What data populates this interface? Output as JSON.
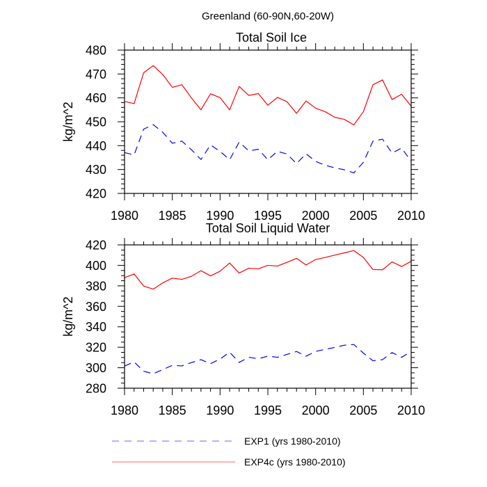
{
  "figure": {
    "title": "Greenland (60-90N,60-20W)"
  },
  "chart_data": [
    {
      "type": "line",
      "title": "Total Soil Ice",
      "xlabel": "",
      "ylabel": "kg/m^2",
      "xlim": [
        1980,
        2010
      ],
      "ylim": [
        420,
        480
      ],
      "x_ticks": [
        1980,
        1985,
        1990,
        1995,
        2000,
        2005,
        2010
      ],
      "x_tick_labels": [
        "1980",
        "1985",
        "1990",
        "1995",
        "2000",
        "2005",
        "2010"
      ],
      "x_minor_step": 1,
      "y_ticks": [
        420,
        430,
        440,
        450,
        460,
        470,
        480
      ],
      "y_tick_labels": [
        "420",
        "430",
        "440",
        "450",
        "460",
        "470",
        "480"
      ],
      "y_minor_step": 2,
      "grid": false,
      "x": [
        1980,
        1981,
        1982,
        1983,
        1984,
        1985,
        1986,
        1987,
        1988,
        1989,
        1990,
        1991,
        1992,
        1993,
        1994,
        1995,
        1996,
        1997,
        1998,
        1999,
        2000,
        2001,
        2002,
        2003,
        2004,
        2005,
        2006,
        2007,
        2008,
        2009,
        2010
      ],
      "series": [
        {
          "name": "EXP1 (yrs 1980-2010)",
          "color": "#0000ff",
          "style": "dashed",
          "values": [
            437.1,
            436.1,
            446.9,
            448.8,
            445.6,
            441.0,
            441.9,
            438.3,
            434.2,
            440.3,
            437.6,
            434.1,
            441.5,
            437.8,
            438.5,
            434.1,
            437.6,
            436.5,
            432.5,
            436.6,
            433.4,
            431.8,
            430.7,
            429.9,
            428.6,
            433.0,
            441.9,
            442.7,
            436.9,
            439.0,
            433.4
          ]
        },
        {
          "name": "EXP4c (yrs 1980-2010)",
          "color": "#ff0000",
          "style": "solid",
          "values": [
            458.5,
            457.6,
            470.5,
            473.5,
            469.8,
            464.4,
            465.5,
            460.0,
            455.0,
            461.7,
            460.1,
            455.0,
            464.8,
            461.0,
            461.8,
            456.9,
            460.2,
            458.4,
            453.5,
            458.7,
            455.7,
            454.2,
            451.9,
            451.0,
            448.7,
            454.2,
            465.5,
            467.5,
            459.3,
            461.5,
            456.5
          ]
        }
      ]
    },
    {
      "type": "line",
      "title": "Total Soil Liquid Water",
      "xlabel": "",
      "ylabel": "kg/m^2",
      "xlim": [
        1980,
        2010
      ],
      "ylim": [
        280,
        420
      ],
      "x_ticks": [
        1980,
        1985,
        1990,
        1995,
        2000,
        2005,
        2010
      ],
      "x_tick_labels": [
        "1980",
        "1985",
        "1990",
        "1995",
        "2000",
        "2005",
        "2010"
      ],
      "x_minor_step": 1,
      "y_ticks": [
        280,
        300,
        320,
        340,
        360,
        380,
        400,
        420
      ],
      "y_tick_labels": [
        "280",
        "300",
        "320",
        "340",
        "360",
        "380",
        "400",
        "420"
      ],
      "y_minor_step": 5,
      "grid": false,
      "x": [
        1980,
        1981,
        1982,
        1983,
        1984,
        1985,
        1986,
        1987,
        1988,
        1989,
        1990,
        1991,
        1992,
        1993,
        1994,
        1995,
        1996,
        1997,
        1998,
        1999,
        2000,
        2001,
        2002,
        2003,
        2004,
        2005,
        2006,
        2007,
        2008,
        2009,
        2010
      ],
      "series": [
        {
          "name": "EXP1 (yrs 1980-2010)",
          "color": "#0000ff",
          "style": "dashed",
          "values": [
            301.6,
            305.7,
            296.6,
            294.1,
            298.2,
            302.3,
            301.8,
            305.0,
            307.9,
            304.0,
            308.5,
            315.2,
            305.2,
            310.2,
            308.8,
            311.3,
            310.2,
            313.0,
            315.9,
            311.3,
            315.9,
            318.0,
            319.8,
            322.0,
            322.7,
            314.3,
            306.8,
            307.9,
            314.8,
            310.2,
            315.9
          ]
        },
        {
          "name": "EXP4c (yrs 1980-2010)",
          "color": "#ff0000",
          "style": "solid",
          "values": [
            387.9,
            391.6,
            379.8,
            376.8,
            382.9,
            387.5,
            386.3,
            389.3,
            394.8,
            389.7,
            394.3,
            402.3,
            392.5,
            397.2,
            396.6,
            400.0,
            399.3,
            403.0,
            406.8,
            400.4,
            405.7,
            407.7,
            410.0,
            412.2,
            414.5,
            407.7,
            395.9,
            395.7,
            403.4,
            398.9,
            404.0
          ]
        }
      ]
    }
  ],
  "legend": {
    "placement": "bottom-center",
    "items": [
      {
        "label": "EXP1 (yrs 1980-2010)",
        "color": "#0000ff",
        "style": "dashed"
      },
      {
        "label": "EXP4c (yrs 1980-2010)",
        "color": "#ff0000",
        "style": "solid"
      }
    ]
  }
}
